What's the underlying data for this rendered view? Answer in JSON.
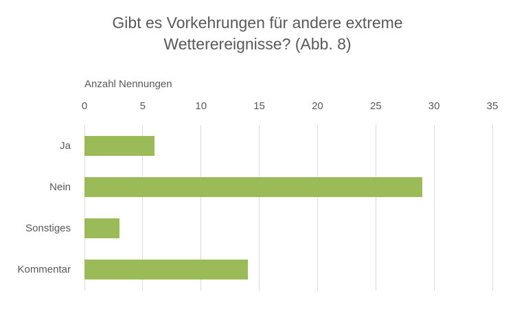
{
  "chart_data": {
    "type": "bar",
    "orientation": "horizontal",
    "title": "Gibt es Vorkehrungen für andere extreme Wetterereignisse? (Abb. 8)",
    "axis_title": "Anzahl Nennungen",
    "categories": [
      "Ja",
      "Nein",
      "Sonstiges",
      "Kommentar"
    ],
    "values": [
      6,
      29,
      3,
      14
    ],
    "xlim": [
      0,
      35
    ],
    "xticks": [
      0,
      5,
      10,
      15,
      20,
      25,
      30,
      35
    ],
    "grid": true,
    "legend": false,
    "colors": {
      "bar": "#9BBB59",
      "gridline": "#D9D9D9",
      "text": "#595959",
      "background": "#FFFFFF"
    }
  }
}
